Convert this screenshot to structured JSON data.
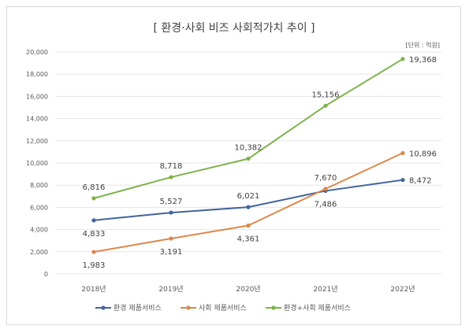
{
  "chart_data": {
    "type": "line",
    "title": "[ 환경·사회 비즈 사회적가치 추이 ]",
    "unit_note": "[단위 : 억원]",
    "categories": [
      "2018년",
      "2019년",
      "2020년",
      "2021년",
      "2022년"
    ],
    "ylim": [
      0,
      20000
    ],
    "yticks": [
      0,
      2000,
      4000,
      6000,
      8000,
      10000,
      12000,
      14000,
      16000,
      18000,
      20000
    ],
    "ytick_labels": [
      "0",
      "2,000",
      "4,000",
      "6,000",
      "8,000",
      "10,000",
      "12,000",
      "14,000",
      "16,000",
      "18,000",
      "20,000"
    ],
    "grid": true,
    "legend_position": "bottom",
    "series": [
      {
        "name": "환경 제품서비스",
        "color": "#41649b",
        "values": [
          4833,
          5527,
          6021,
          7486,
          8472
        ],
        "labels": [
          "4,833",
          "5,527",
          "6,021",
          "7,486",
          "8,472"
        ],
        "label_pos": [
          "below",
          "above",
          "above",
          "below",
          "right"
        ]
      },
      {
        "name": "사회 제품서비스",
        "color": "#dd8749",
        "values": [
          1983,
          3191,
          4361,
          7670,
          10896
        ],
        "labels": [
          "1,983",
          "3,191",
          "4,361",
          "7,670",
          "10,896"
        ],
        "label_pos": [
          "below",
          "below",
          "below",
          "above",
          "right"
        ]
      },
      {
        "name": "환경+사회 제품서비스",
        "color": "#7eb24c",
        "values": [
          6816,
          8718,
          10382,
          15156,
          19368
        ],
        "labels": [
          "6,816",
          "8,718",
          "10,382",
          "15,156",
          "19,368"
        ],
        "label_pos": [
          "above",
          "above",
          "above",
          "above",
          "right"
        ]
      }
    ]
  }
}
